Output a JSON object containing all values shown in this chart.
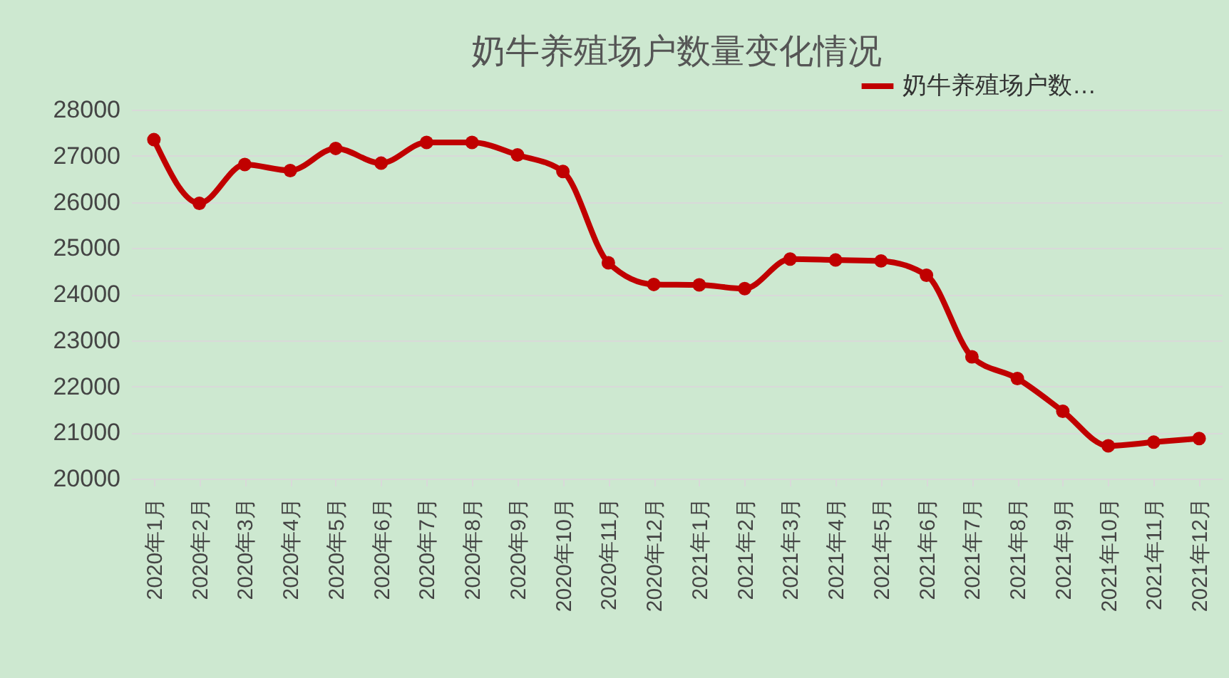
{
  "chart_data": {
    "type": "line",
    "title": "奶牛养殖场户数量变化情况",
    "categories": [
      "2020年1月",
      "2020年2月",
      "2020年3月",
      "2020年4月",
      "2020年5月",
      "2020年6月",
      "2020年7月",
      "2020年8月",
      "2020年9月",
      "2020年10月",
      "2020年11月",
      "2020年12月",
      "2021年1月",
      "2021年2月",
      "2021年3月",
      "2021年4月",
      "2021年5月",
      "2021年6月",
      "2021年7月",
      "2021年8月",
      "2021年9月",
      "2021年10月",
      "2021年11月",
      "2021年12月"
    ],
    "series": [
      {
        "name": "奶牛养殖场户数…",
        "color": "#c00000",
        "values": [
          27350,
          25970,
          26810,
          26680,
          27160,
          26840,
          27290,
          27290,
          27020,
          26660,
          24680,
          24210,
          24200,
          24120,
          24760,
          24740,
          24720,
          24410,
          22640,
          22170,
          21460,
          20710,
          20790,
          20870
        ]
      }
    ],
    "ylim": [
      20000,
      28000
    ],
    "yticks": [
      20000,
      21000,
      22000,
      23000,
      24000,
      25000,
      26000,
      27000,
      28000
    ],
    "grid": "y",
    "legend": "top right",
    "marker": "circle",
    "line_style": "solid"
  }
}
